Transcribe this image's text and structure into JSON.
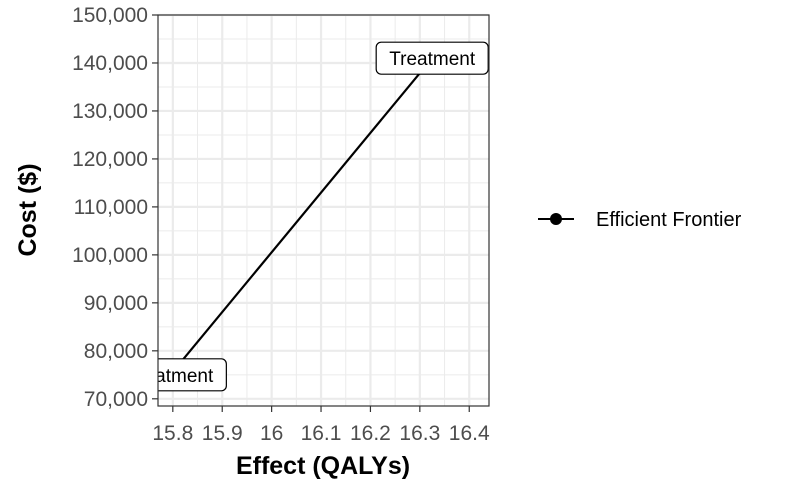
{
  "chart_data": {
    "type": "line",
    "xlabel": "Effect (QALYs)",
    "ylabel": "Cost ($)",
    "xlim": [
      15.77,
      16.44
    ],
    "ylim": [
      68500,
      150000
    ],
    "x_ticks": [
      15.8,
      15.9,
      16.0,
      16.1,
      16.2,
      16.3,
      16.4
    ],
    "x_tick_labels": [
      "15.8",
      "15.9",
      "16",
      "16.1",
      "16.2",
      "16.3",
      "16.4"
    ],
    "y_ticks": [
      70000,
      80000,
      90000,
      100000,
      110000,
      120000,
      130000,
      140000,
      150000
    ],
    "y_tick_labels": [
      "70,000",
      "80,000",
      "90,000",
      "100,000",
      "110,000",
      "120,000",
      "130,000",
      "140,000",
      "150,000"
    ],
    "grid": true,
    "legend": {
      "position": "right",
      "entries": [
        "Efficient Frontier"
      ]
    },
    "series": [
      {
        "name": "Efficient Frontier",
        "points": [
          {
            "x": 15.795,
            "y": 75000,
            "label": "Treatment"
          },
          {
            "x": 16.325,
            "y": 141000,
            "label": "Treatment"
          }
        ]
      }
    ],
    "colors": {
      "line": "#000000",
      "grid": "#ebebeb",
      "panel_border": "#333333"
    }
  }
}
